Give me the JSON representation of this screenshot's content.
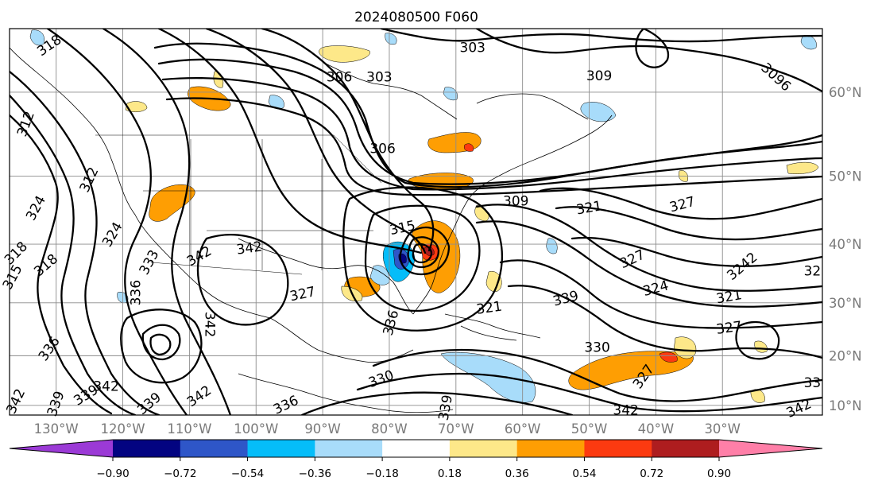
{
  "title": "2024080500 F060",
  "map": {
    "projection": "Mercator",
    "lon_range": [
      -137,
      -15
    ],
    "lat_range": [
      8,
      66
    ],
    "lon_ticks": [
      {
        "lon": -130,
        "label": "130°W"
      },
      {
        "lon": -120,
        "label": "120°W"
      },
      {
        "lon": -110,
        "label": "110°W"
      },
      {
        "lon": -100,
        "label": "100°W"
      },
      {
        "lon": -90,
        "label": "90°W"
      },
      {
        "lon": -80,
        "label": "80°W"
      },
      {
        "lon": -70,
        "label": "70°W"
      },
      {
        "lon": -60,
        "label": "60°W"
      },
      {
        "lon": -50,
        "label": "50°W"
      },
      {
        "lon": -40,
        "label": "40°W"
      },
      {
        "lon": -30,
        "label": "30°W"
      }
    ],
    "lat_ticks": [
      {
        "lat": 10,
        "label": "10°N"
      },
      {
        "lat": 20,
        "label": "20°N"
      },
      {
        "lat": 30,
        "label": "30°N"
      },
      {
        "lat": 40,
        "label": "40°N"
      },
      {
        "lat": 50,
        "label": "50°N"
      },
      {
        "lat": 60,
        "label": "60°N"
      }
    ],
    "gridlines": true,
    "contour_color": "#000000",
    "contour_labels": [
      {
        "text": "318",
        "lon": -131,
        "lat": 64.5,
        "rot": -35
      },
      {
        "text": "306",
        "lon": -87.5,
        "lat": 61.5,
        "rot": 0
      },
      {
        "text": "303",
        "lon": -81.5,
        "lat": 61.5,
        "rot": 0
      },
      {
        "text": "303",
        "lon": -67.5,
        "lat": 64.3,
        "rot": 0
      },
      {
        "text": "306",
        "lon": -81,
        "lat": 53.5,
        "rot": 0
      },
      {
        "text": "309",
        "lon": -48.5,
        "lat": 61.6,
        "rot": 0
      },
      {
        "text": "3096",
        "lon": -22,
        "lat": 61.5,
        "rot": 42
      },
      {
        "text": "312",
        "lon": -134.5,
        "lat": 56.5,
        "rot": -70
      },
      {
        "text": "312",
        "lon": -125,
        "lat": 49.5,
        "rot": -65
      },
      {
        "text": "324",
        "lon": -133,
        "lat": 45.5,
        "rot": -62
      },
      {
        "text": "324",
        "lon": -121.5,
        "lat": 41.5,
        "rot": -60
      },
      {
        "text": "318",
        "lon": -136,
        "lat": 38.5,
        "rot": -45
      },
      {
        "text": "318",
        "lon": -131.5,
        "lat": 36.5,
        "rot": -40
      },
      {
        "text": "315",
        "lon": -136.5,
        "lat": 34.5,
        "rot": -62
      },
      {
        "text": "333",
        "lon": -116,
        "lat": 37,
        "rot": -62
      },
      {
        "text": "336",
        "lon": -118,
        "lat": 31.8,
        "rot": -90
      },
      {
        "text": "342",
        "lon": -108.5,
        "lat": 38,
        "rot": -30
      },
      {
        "text": "342",
        "lon": -101,
        "lat": 39.3,
        "rot": -8
      },
      {
        "text": "342",
        "lon": -107,
        "lat": 26,
        "rot": 90
      },
      {
        "text": "327",
        "lon": -93,
        "lat": 31.5,
        "rot": -12
      },
      {
        "text": "315",
        "lon": -78,
        "lat": 42.5,
        "rot": -12
      },
      {
        "text": "309",
        "lon": -61,
        "lat": 46.5,
        "rot": 0
      },
      {
        "text": "321",
        "lon": -50,
        "lat": 45.5,
        "rot": -10
      },
      {
        "text": "327",
        "lon": -36,
        "lat": 46,
        "rot": -15
      },
      {
        "text": "327",
        "lon": -43.5,
        "lat": 37.5,
        "rot": -25
      },
      {
        "text": "3242",
        "lon": -27,
        "lat": 36.3,
        "rot": -40
      },
      {
        "text": "32",
        "lon": -16.5,
        "lat": 35.5,
        "rot": 0
      },
      {
        "text": "324",
        "lon": -40,
        "lat": 32.5,
        "rot": -15
      },
      {
        "text": "321",
        "lon": -29,
        "lat": 31,
        "rot": -10
      },
      {
        "text": "321",
        "lon": -65,
        "lat": 29,
        "rot": -8
      },
      {
        "text": "339",
        "lon": -53.5,
        "lat": 30.7,
        "rot": -15
      },
      {
        "text": "327",
        "lon": -29,
        "lat": 25.3,
        "rot": -8
      },
      {
        "text": "330",
        "lon": -48.8,
        "lat": 21.5,
        "rot": 0
      },
      {
        "text": "336",
        "lon": -79.7,
        "lat": 26.3,
        "rot": -75
      },
      {
        "text": "330",
        "lon": -81.2,
        "lat": 15.3,
        "rot": -20
      },
      {
        "text": "336",
        "lon": -131,
        "lat": 21.3,
        "rot": -55
      },
      {
        "text": "342",
        "lon": -122.5,
        "lat": 13.8,
        "rot": 0
      },
      {
        "text": "339",
        "lon": -125.5,
        "lat": 12,
        "rot": -32
      },
      {
        "text": "339",
        "lon": -116,
        "lat": 10.3,
        "rot": -40
      },
      {
        "text": "342",
        "lon": -108.5,
        "lat": 11.8,
        "rot": -35
      },
      {
        "text": "336",
        "lon": -95.5,
        "lat": 10,
        "rot": -25
      },
      {
        "text": "342",
        "lon": -136,
        "lat": 10.8,
        "rot": -65
      },
      {
        "text": "339",
        "lon": -130,
        "lat": 10.3,
        "rot": -70
      },
      {
        "text": "327",
        "lon": -41.8,
        "lat": 15.8,
        "rot": -55
      },
      {
        "text": "33",
        "lon": -16.5,
        "lat": 14.5,
        "rot": 0
      },
      {
        "text": "342",
        "lon": -18.5,
        "lat": 9.3,
        "rot": -25
      },
      {
        "text": "342",
        "lon": -44.5,
        "lat": 8.9,
        "rot": 0
      },
      {
        "text": "339",
        "lon": -71.5,
        "lat": 9.5,
        "rot": -80
      }
    ]
  },
  "colorbar": {
    "ticks": [
      "−0.90",
      "−0.72",
      "−0.54",
      "−0.36",
      "−0.18",
      "0.18",
      "0.36",
      "0.54",
      "0.72",
      "0.90"
    ],
    "bins": [
      {
        "color": "#9b3ad6"
      },
      {
        "color": "#030481"
      },
      {
        "color": "#2e56c8"
      },
      {
        "color": "#05bdf9"
      },
      {
        "color": "#a8dcfa"
      },
      {
        "color": "#ffffff"
      },
      {
        "color": "#fde889"
      },
      {
        "color": "#fe9e03"
      },
      {
        "color": "#fc3a10"
      },
      {
        "color": "#ae1d1f"
      },
      {
        "color": "#ff7fa8"
      }
    ]
  }
}
